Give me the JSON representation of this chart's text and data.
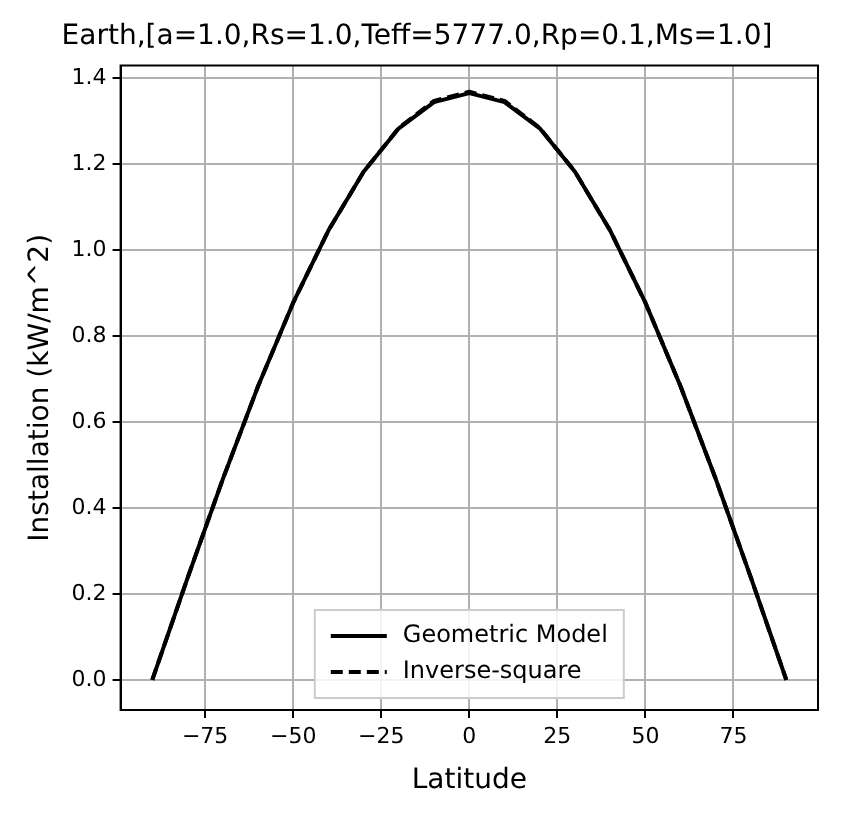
{
  "chart_data": {
    "type": "line",
    "title": "Earth,[a=1.0,Rs=1.0,Teff=5777.0,Rp=0.1,Ms=1.0]",
    "xlabel": "Latitude",
    "ylabel": "Installation (kW/m^2)",
    "x": [
      -90,
      -80,
      -70,
      -60,
      -50,
      -40,
      -30,
      -20,
      -10,
      0,
      10,
      20,
      30,
      40,
      50,
      60,
      70,
      80,
      90
    ],
    "series": [
      {
        "name": "Geometric Model",
        "color": "#000000",
        "line_style": "solid",
        "values": [
          0,
          0.237,
          0.467,
          0.683,
          0.878,
          1.046,
          1.183,
          1.284,
          1.345,
          1.366,
          1.345,
          1.284,
          1.183,
          1.046,
          0.878,
          0.683,
          0.467,
          0.237,
          0
        ]
      },
      {
        "name": "Inverse-square",
        "color": "#000000",
        "line_style": "dashed",
        "values": [
          0,
          0.237,
          0.467,
          0.683,
          0.878,
          1.046,
          1.183,
          1.285,
          1.348,
          1.369,
          1.348,
          1.285,
          1.183,
          1.046,
          0.878,
          0.683,
          0.467,
          0.237,
          0
        ]
      }
    ],
    "xlim": [
      -99,
      99
    ],
    "xticks": [
      {
        "value": -75,
        "label": "−75"
      },
      {
        "value": -50,
        "label": "−50"
      },
      {
        "value": -25,
        "label": "−25"
      },
      0,
      25,
      50,
      75
    ],
    "ylim": [
      -0.07,
      1.43
    ],
    "yticks": [
      {
        "value": 0,
        "label": "0.0"
      },
      {
        "value": 0.2,
        "label": "0.2"
      },
      {
        "value": 0.4,
        "label": "0.4"
      },
      {
        "value": 0.6,
        "label": "0.6"
      },
      {
        "value": 0.8,
        "label": "0.8"
      },
      {
        "value": 1,
        "label": "1.0"
      },
      {
        "value": 1.2,
        "label": "1.2"
      },
      {
        "value": 1.4,
        "label": "1.4"
      }
    ],
    "grid": true,
    "legend": "bottom",
    "marker": "none"
  }
}
